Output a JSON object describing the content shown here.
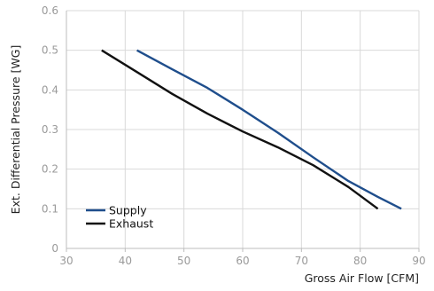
{
  "chart_data": {
    "type": "line",
    "xlabel": "Gross Air Flow [CFM]",
    "ylabel": "Ext. Differential Pressure [WG]",
    "xlim": [
      30,
      90
    ],
    "ylim": [
      0,
      0.6
    ],
    "x_ticks": [
      "30",
      "40",
      "50",
      "60",
      "70",
      "80",
      "90"
    ],
    "y_ticks": [
      "0",
      "0.1",
      "0.2",
      "0.3",
      "0.4",
      "0.5",
      "0.6"
    ],
    "grid": true,
    "legend_position": "bottom-left",
    "series": [
      {
        "name": "Supply",
        "color": "#1f4e8c",
        "points": [
          [
            42,
            0.5
          ],
          [
            48,
            0.452
          ],
          [
            54,
            0.405
          ],
          [
            60,
            0.35
          ],
          [
            66,
            0.292
          ],
          [
            72,
            0.23
          ],
          [
            78,
            0.17
          ],
          [
            83,
            0.13
          ],
          [
            87,
            0.1
          ]
        ]
      },
      {
        "name": "Exhaust",
        "color": "#111111",
        "points": [
          [
            36,
            0.5
          ],
          [
            42,
            0.445
          ],
          [
            48,
            0.39
          ],
          [
            54,
            0.34
          ],
          [
            60,
            0.295
          ],
          [
            66,
            0.255
          ],
          [
            72,
            0.21
          ],
          [
            78,
            0.155
          ],
          [
            83,
            0.1
          ]
        ]
      }
    ]
  }
}
